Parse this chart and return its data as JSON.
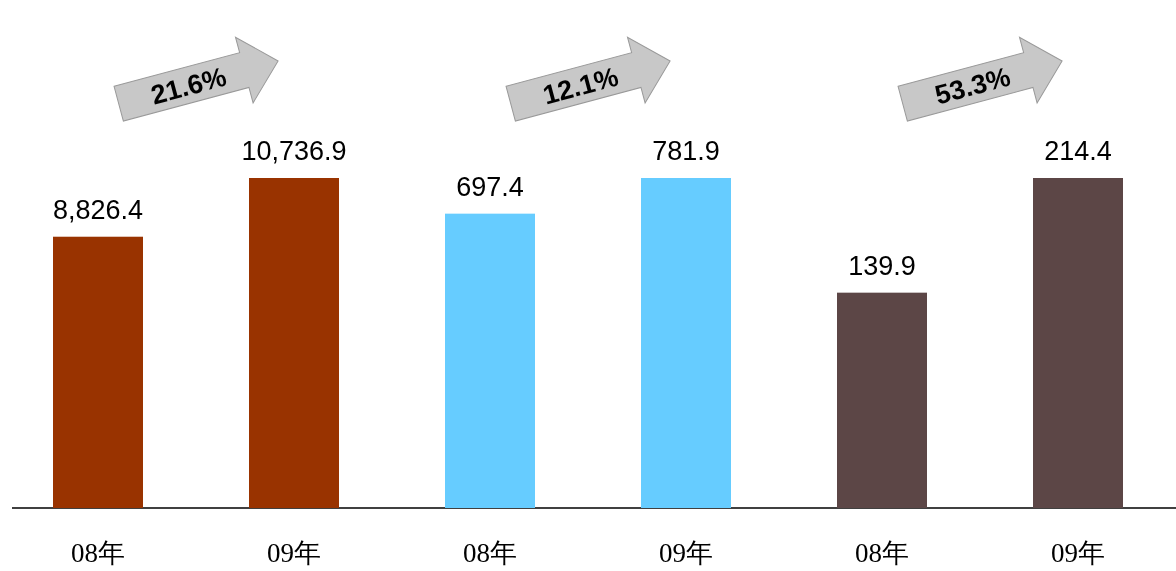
{
  "chart_data": [
    {
      "type": "bar",
      "categories": [
        "08年",
        "09年"
      ],
      "values": [
        8826.4,
        10736.9
      ],
      "colors": [
        "#993300",
        "#993300"
      ],
      "value_labels": [
        "8,826.4",
        "10,736.9"
      ],
      "annotations": [
        "21.6%"
      ]
    },
    {
      "type": "bar",
      "categories": [
        "08年",
        "09年"
      ],
      "values": [
        697.4,
        781.9
      ],
      "colors": [
        "#66ccff",
        "#66ccff"
      ],
      "data_labels": true,
      "annotations": [
        "12.1%"
      ]
    },
    {
      "type": "bar",
      "categories": [
        "08年",
        "09年"
      ],
      "values": [
        139.9,
        214.4
      ],
      "colors": [
        "#5c4646",
        "#5c4646"
      ],
      "data_labels": true,
      "annotations": [
        "53.3%"
      ]
    }
  ]
}
